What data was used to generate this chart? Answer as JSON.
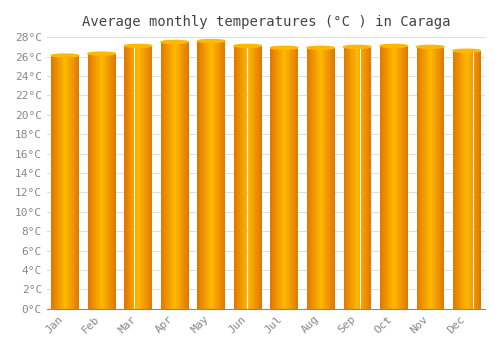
{
  "title": "Average monthly temperatures (°C ) in Caraga",
  "months": [
    "Jan",
    "Feb",
    "Mar",
    "Apr",
    "May",
    "Jun",
    "Jul",
    "Aug",
    "Sep",
    "Oct",
    "Nov",
    "Dec"
  ],
  "values": [
    26.1,
    26.3,
    27.1,
    27.5,
    27.6,
    27.1,
    26.9,
    26.9,
    27.0,
    27.1,
    27.0,
    26.6
  ],
  "bar_color_left": "#E07800",
  "bar_color_center": "#FFB800",
  "bar_color_right": "#E07800",
  "background_color": "#FFFFFF",
  "grid_color": "#DDDDDD",
  "ylim": [
    0,
    28
  ],
  "ytick_step": 2,
  "title_fontsize": 10,
  "tick_fontsize": 8,
  "font_family": "monospace",
  "bar_width": 0.75,
  "n_grad": 80
}
